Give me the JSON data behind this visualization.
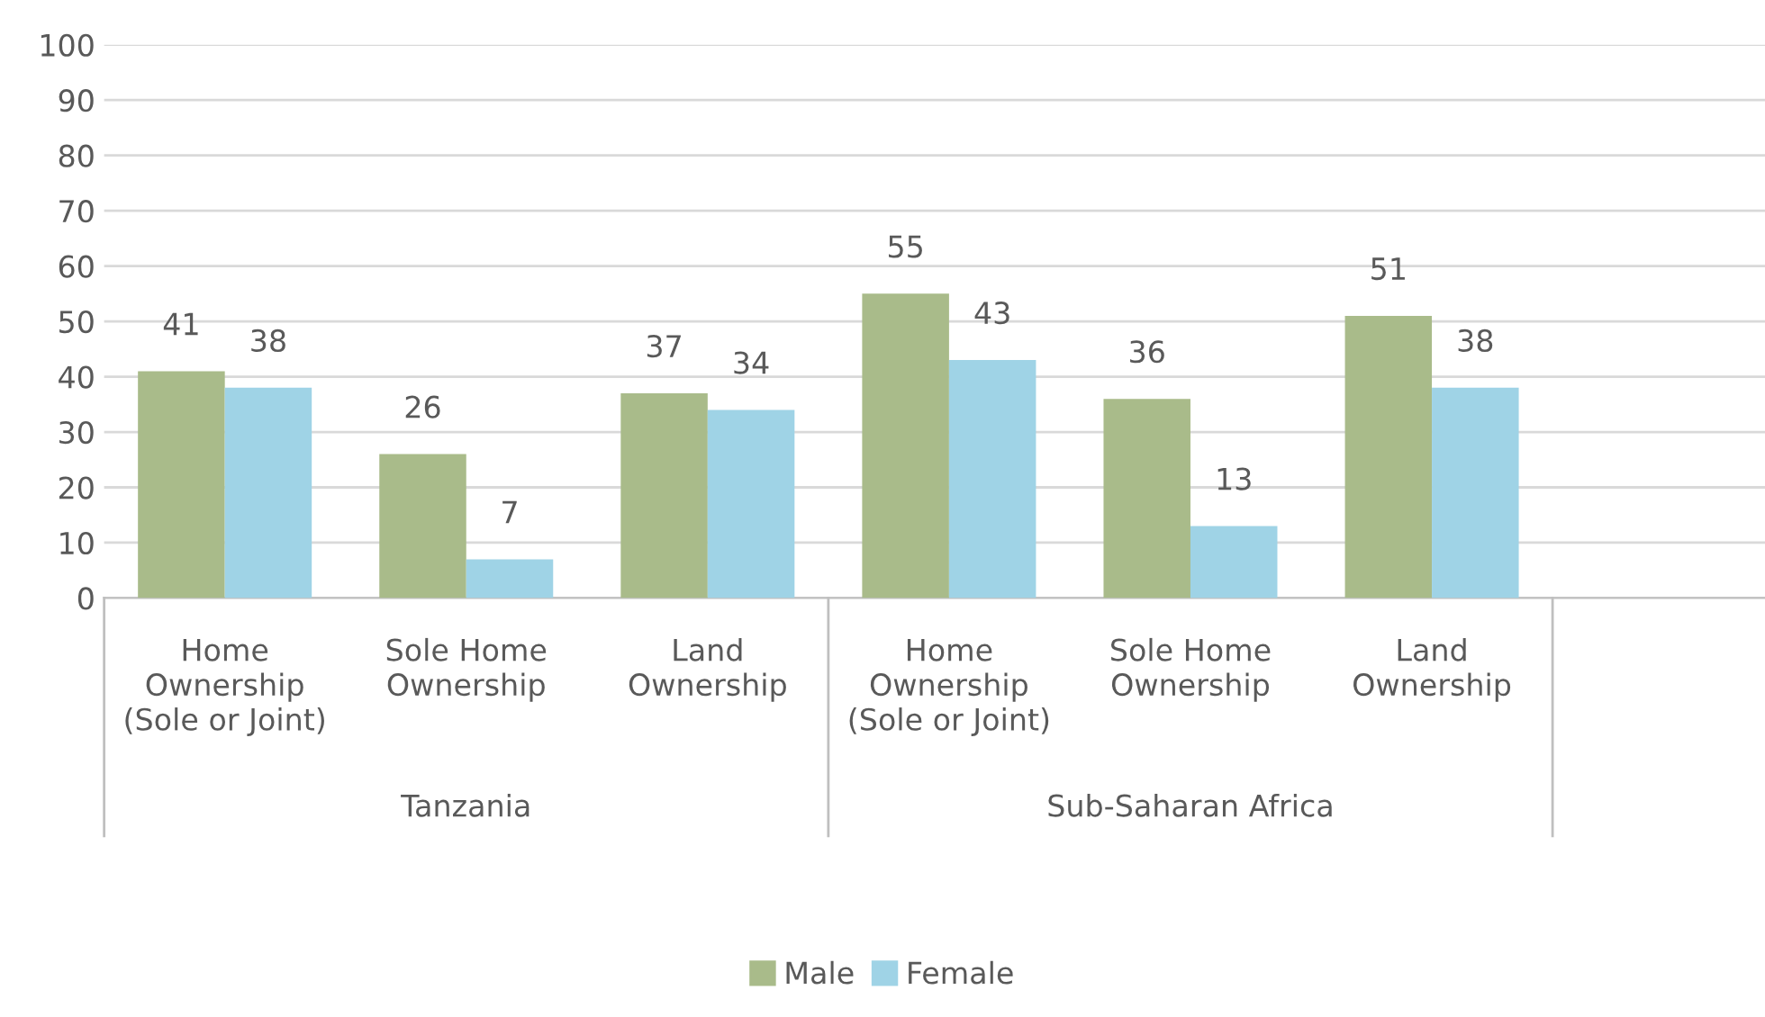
{
  "chart_data": {
    "type": "bar",
    "categories": [
      "Home\nOwnership\n(Sole or Joint)",
      "Sole Home\nOwnership",
      "Land\nOwnership",
      "Home\nOwnership\n(Sole or Joint)",
      "Sole Home\nOwnership",
      "Land\nOwnership"
    ],
    "series": [
      {
        "name": "Male",
        "color": "#a9bb8a",
        "values": [
          41,
          26,
          37,
          55,
          36,
          51
        ]
      },
      {
        "name": "Female",
        "color": "#9fd3e6",
        "values": [
          38,
          7,
          34,
          43,
          13,
          38
        ]
      }
    ],
    "annotations": [
      "Tanzania",
      "Sub-Saharan Africa"
    ],
    "ylim": [
      0,
      100
    ],
    "yticks": [
      0,
      10,
      20,
      30,
      40,
      50,
      60,
      70,
      80,
      90,
      100
    ],
    "grid": "y",
    "data_labels": true,
    "legend": "bottom"
  }
}
